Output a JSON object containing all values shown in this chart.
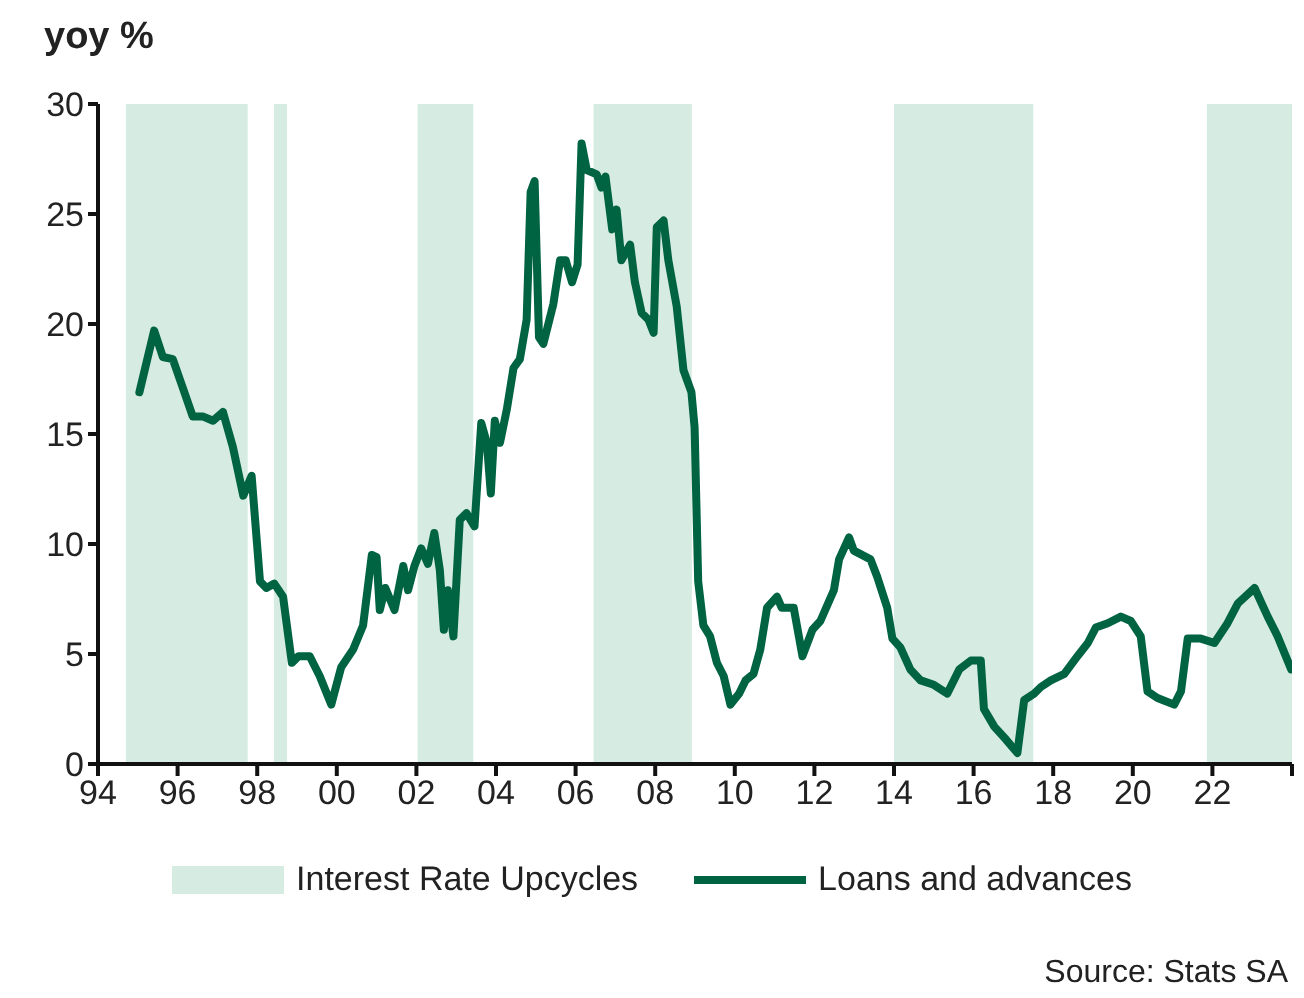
{
  "chart_data": {
    "type": "line",
    "ylabel": "yoy %",
    "legend": "bottom",
    "marker": "none",
    "line_style": "solid",
    "xlim": [
      1994,
      2024
    ],
    "ylim": [
      0,
      30
    ],
    "yticks": [
      0,
      5,
      10,
      15,
      20,
      25,
      30
    ],
    "xticks": [
      {
        "value": 1994,
        "label": "94"
      },
      {
        "value": 1996,
        "label": "96"
      },
      {
        "value": 1998,
        "label": "98"
      },
      {
        "value": 2000,
        "label": "00"
      },
      {
        "value": 2002,
        "label": "02"
      },
      {
        "value": 2004,
        "label": "04"
      },
      {
        "value": 2006,
        "label": "06"
      },
      {
        "value": 2008,
        "label": "08"
      },
      {
        "value": 2010,
        "label": "10"
      },
      {
        "value": 2012,
        "label": "12"
      },
      {
        "value": 2014,
        "label": "14"
      },
      {
        "value": 2016,
        "label": "16"
      },
      {
        "value": 2018,
        "label": "18"
      },
      {
        "value": 2020,
        "label": "20"
      },
      {
        "value": 2022,
        "label": "22"
      },
      {
        "value": 2024,
        "label": null
      }
    ],
    "bands": [
      {
        "axis": "x",
        "from": 1994.7,
        "to": 1997.76,
        "label": "Interest Rate Upcycles",
        "color": "#d6ebe2"
      },
      {
        "axis": "x",
        "from": 1998.42,
        "to": 1998.75,
        "color": "#d6ebe2"
      },
      {
        "axis": "x",
        "from": 2002.03,
        "to": 2003.43,
        "color": "#d6ebe2"
      },
      {
        "axis": "x",
        "from": 2006.45,
        "to": 2008.92,
        "color": "#d6ebe2"
      },
      {
        "axis": "x",
        "from": 2014.0,
        "to": 2017.5,
        "color": "#d6ebe2"
      },
      {
        "axis": "x",
        "from": 2021.86,
        "to": 2024,
        "color": "#d6ebe2"
      }
    ],
    "series": [
      {
        "name": "Loans and advances",
        "color": "#006341",
        "x": [
          1995.04,
          1995.41,
          1995.63,
          1995.88,
          1996.13,
          1996.38,
          1996.63,
          1996.89,
          1997.14,
          1997.39,
          1997.65,
          1997.86,
          1998.07,
          1998.23,
          1998.43,
          1998.65,
          1998.87,
          1999.04,
          1999.32,
          1999.57,
          1999.86,
          2000.11,
          2000.41,
          2000.66,
          2000.88,
          2001.0,
          2001.08,
          2001.22,
          2001.45,
          2001.67,
          2001.79,
          2001.95,
          2002.12,
          2002.29,
          2002.45,
          2002.59,
          2002.69,
          2002.79,
          2002.93,
          2003.09,
          2003.26,
          2003.46,
          2003.63,
          2003.77,
          2003.87,
          2003.97,
          2004.1,
          2004.27,
          2004.44,
          2004.6,
          2004.77,
          2004.87,
          2004.97,
          2005.08,
          2005.19,
          2005.44,
          2005.61,
          2005.75,
          2005.91,
          2006.05,
          2006.15,
          2006.28,
          2006.53,
          2006.65,
          2006.75,
          2006.92,
          2007.03,
          2007.15,
          2007.37,
          2007.49,
          2007.66,
          2007.83,
          2007.96,
          2008.04,
          2008.21,
          2008.33,
          2008.54,
          2008.71,
          2008.91,
          2008.99,
          2009.08,
          2009.21,
          2009.38,
          2009.55,
          2009.72,
          2009.89,
          2010.11,
          2010.27,
          2010.47,
          2010.64,
          2010.81,
          2011.06,
          2011.18,
          2011.48,
          2011.7,
          2011.95,
          2012.15,
          2012.49,
          2012.62,
          2012.87,
          2012.99,
          2013.41,
          2013.58,
          2013.83,
          2013.96,
          2014.16,
          2014.41,
          2014.67,
          2015.0,
          2015.34,
          2015.64,
          2015.93,
          2016.18,
          2016.26,
          2016.52,
          2016.82,
          2017.1,
          2017.27,
          2017.52,
          2017.69,
          2017.94,
          2018.28,
          2018.61,
          2018.87,
          2019.07,
          2019.37,
          2019.7,
          2019.95,
          2020.2,
          2020.37,
          2020.62,
          2021.04,
          2021.21,
          2021.38,
          2021.71,
          2022.05,
          2022.38,
          2022.64,
          2023.06,
          2023.39,
          2023.64,
          2023.98
        ],
        "values": [
          16.9,
          19.7,
          18.5,
          18.4,
          17.1,
          15.8,
          15.8,
          15.6,
          16.0,
          14.4,
          12.2,
          13.1,
          8.3,
          8.0,
          8.2,
          7.6,
          4.6,
          4.9,
          4.9,
          4.0,
          2.7,
          4.4,
          5.2,
          6.3,
          9.5,
          9.4,
          7.0,
          8.0,
          7.0,
          9.0,
          7.9,
          9.0,
          9.8,
          9.1,
          10.5,
          8.8,
          6.1,
          7.9,
          5.8,
          11.1,
          11.4,
          10.8,
          15.5,
          14.6,
          12.3,
          15.6,
          14.6,
          16.1,
          18.0,
          18.4,
          20.2,
          26.0,
          26.5,
          19.4,
          19.1,
          20.9,
          22.9,
          22.9,
          21.9,
          22.7,
          28.2,
          27.0,
          26.8,
          26.2,
          26.7,
          24.3,
          25.2,
          22.9,
          23.6,
          21.9,
          20.5,
          20.2,
          19.6,
          24.4,
          24.7,
          22.9,
          20.8,
          17.9,
          16.9,
          15.3,
          8.3,
          6.3,
          5.8,
          4.6,
          4.0,
          2.7,
          3.2,
          3.8,
          4.1,
          5.2,
          7.1,
          7.6,
          7.1,
          7.1,
          4.9,
          6.1,
          6.5,
          7.9,
          9.3,
          10.3,
          9.7,
          9.3,
          8.5,
          7.1,
          5.7,
          5.3,
          4.3,
          3.8,
          3.6,
          3.2,
          4.3,
          4.7,
          4.7,
          2.5,
          1.7,
          1.1,
          0.5,
          2.9,
          3.2,
          3.5,
          3.8,
          4.1,
          4.9,
          5.5,
          6.2,
          6.4,
          6.7,
          6.5,
          5.8,
          3.3,
          3.0,
          2.7,
          3.3,
          5.7,
          5.7,
          5.5,
          6.4,
          7.3,
          8.0,
          6.7,
          5.8,
          4.3
        ]
      }
    ],
    "annotations": [
      "Source: Stats SA"
    ]
  }
}
